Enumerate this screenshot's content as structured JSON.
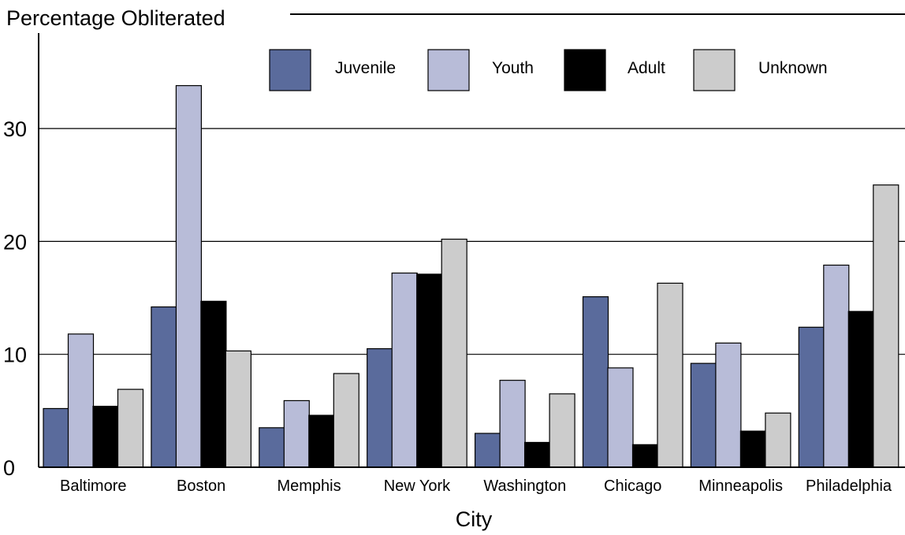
{
  "chart_data": {
    "type": "bar",
    "title": "Percentage Obliterated",
    "xlabel": "City",
    "ylabel": "Percentage Obliterated",
    "ylim": [
      0,
      37
    ],
    "yticks": [
      0,
      10,
      20,
      30
    ],
    "ytick_labels": [
      "0",
      "10",
      "20",
      "30"
    ],
    "grid": "horizontal",
    "legend_position": "top",
    "categories": [
      "Baltimore",
      "Boston",
      "Memphis",
      "New York",
      "Washington",
      "Chicago",
      "Minneapolis",
      "Philadelphia"
    ],
    "series": [
      {
        "name": "Juvenile",
        "color": "#5a6b9c",
        "values": [
          5.2,
          14.2,
          3.5,
          10.5,
          3.0,
          15.1,
          9.2,
          12.4
        ]
      },
      {
        "name": "Youth",
        "color": "#b8bcd8",
        "values": [
          11.8,
          33.8,
          5.9,
          17.2,
          7.7,
          8.8,
          11.0,
          17.9
        ]
      },
      {
        "name": "Adult",
        "color": "#000000",
        "values": [
          5.4,
          14.7,
          4.6,
          17.1,
          2.2,
          2.0,
          3.2,
          13.8
        ]
      },
      {
        "name": "Unknown",
        "color": "#cccccc",
        "values": [
          6.9,
          10.3,
          8.3,
          20.2,
          6.5,
          16.3,
          4.8,
          25.0
        ]
      }
    ]
  }
}
